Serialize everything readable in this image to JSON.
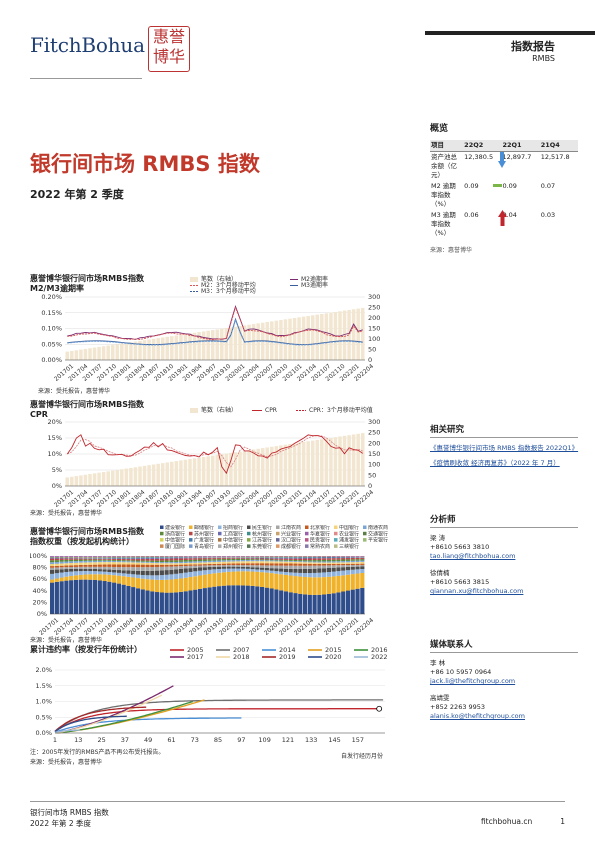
{
  "brand": {
    "logo_text": "FitchBohua",
    "seal_chars": [
      "惠",
      "誉",
      "博",
      "华"
    ]
  },
  "header": {
    "report_type": "指数报告",
    "category": "RMBS"
  },
  "title": {
    "main": "银行间市场 RMBS 指数",
    "sub": "2022 年第 2 季度"
  },
  "overview": {
    "title": "概览",
    "columns": [
      "项目",
      "22Q2",
      "22Q1",
      "21Q4"
    ],
    "rows": [
      {
        "label": "资产池总余额（亿元）",
        "v1": "12,380.5",
        "v2": "12,897.7",
        "v3": "12,517.8"
      },
      {
        "label": "M2 逾期率指数（%）",
        "v1": "0.09",
        "v2": "0.09",
        "v3": "0.07"
      },
      {
        "label": "M3 逾期率指数（%）",
        "v1": "0.06",
        "v2": "0.04",
        "v3": "0.03"
      }
    ],
    "footnote": "来源：惠誉博华",
    "indicator_colors": {
      "down": "#4a8fd6",
      "flat": "#7ab648",
      "up": "#c0262d"
    }
  },
  "related": {
    "title": "相关研究",
    "links": [
      "《惠誉博华银行间市场 RMBS 指数报告 2022Q1》",
      "《疫情刷收敛 经济再复苏》（2022 年 7 月）"
    ]
  },
  "analysts": {
    "title": "分析师",
    "people": [
      {
        "name": "梁 涛",
        "tel": "+8610 5663 3810",
        "email": "tao.liang@fitchbohua.com"
      },
      {
        "name": "徐倩楠",
        "tel": "+8610 5663 3815",
        "email": "qiannan.xu@fitchbohua.com"
      }
    ]
  },
  "media": {
    "title": "媒体联系人",
    "people": [
      {
        "name": "李 林",
        "tel": "+86 10 5957 0964",
        "email": "jack.li@thefitchgroup.com"
      },
      {
        "name": "高靖雯",
        "tel": "+852 2263 9953",
        "email": "alanis.ko@thefitchgroup.com"
      }
    ]
  },
  "chart1": {
    "title_line1": "惠誉博华银行间市场RMBS指数",
    "title_line2": "M2/M3逾期率",
    "legend": [
      "笔数（右轴）",
      "M2逾期率",
      "M2：3个月移动平均",
      "M3逾期率",
      "M3：3个月移动平均"
    ],
    "left_ticks": [
      "0.20%",
      "0.15%",
      "0.10%",
      "0.05%",
      "0.00%"
    ],
    "right_ticks": [
      "300",
      "250",
      "200",
      "150",
      "100",
      "50",
      "0"
    ],
    "x_labels": [
      "201701",
      "201704",
      "201707",
      "201710",
      "201801",
      "201804",
      "201807",
      "201810",
      "201901",
      "201904",
      "201907",
      "201910",
      "202001",
      "202004",
      "202007",
      "202010",
      "202101",
      "202104",
      "202107",
      "202110",
      "202201",
      "202204"
    ],
    "source": "来源：受托报告，惠誉博华"
  },
  "chart2": {
    "title_line1": "惠誉博华银行间市场RMBS指数",
    "title_line2": "CPR",
    "legend": [
      "笔数（右轴）",
      "CPR",
      "CPR：3个月移动平均值"
    ],
    "left_ticks": [
      "20%",
      "15%",
      "10%",
      "5%",
      "0%"
    ],
    "right_ticks": [
      "300",
      "250",
      "200",
      "150",
      "100",
      "50",
      "0"
    ],
    "x_labels": [
      "201701",
      "201704",
      "201707",
      "201710",
      "201801",
      "201804",
      "201807",
      "201810",
      "201901",
      "201904",
      "201907",
      "201910",
      "202001",
      "202004",
      "202007",
      "202010",
      "202101",
      "202104",
      "202107",
      "202110",
      "202201",
      "202204"
    ],
    "source": "来源：受托报告，惠誉博华"
  },
  "chart3": {
    "title_line1": "惠誉博华银行间市场RMBS指数",
    "title_line2": "指数权重（按发起机构统计）",
    "legend": [
      "建设银行",
      "邮储银行",
      "招商银行",
      "民生银行",
      "江南农商",
      "北京银行",
      "中国银行",
      "南通农商",
      "浙商银行",
      "苏州银行",
      "工商银行",
      "杭州银行",
      "兴业银行",
      "华夏银行",
      "农业银行",
      "交通银行",
      "中信银行",
      "广发银行",
      "中信银行",
      "江苏银行",
      "汉口银行",
      "民贡银行",
      "浦发银行",
      "平安银行",
      "厦门国际",
      "青岛银行",
      "郑州银行",
      "东莞银行",
      "成都银行",
      "常熟农商",
      "三峡银行"
    ],
    "left_ticks": [
      "100%",
      "80%",
      "60%",
      "40%",
      "20%",
      "0%"
    ],
    "x_labels": [
      "201701",
      "201704",
      "201707",
      "201710",
      "201801",
      "201804",
      "201807",
      "201810",
      "201901",
      "201904",
      "201907",
      "201910",
      "202001",
      "202004",
      "202007",
      "202010",
      "202101",
      "202104",
      "202107",
      "202110",
      "202201",
      "202204"
    ],
    "source": "来源：受托报告，惠誉博华"
  },
  "chart4": {
    "title": "累计违约率（按发行年份统计）",
    "legend": [
      "2005",
      "2007",
      "2014",
      "2015",
      "2016",
      "2017",
      "2018",
      "2019",
      "2020",
      "2022"
    ],
    "left_ticks": [
      "2.0%",
      "1.5%",
      "1.0%",
      "0.5%",
      "0.0%"
    ],
    "x_labels": [
      "1",
      "13",
      "25",
      "37",
      "49",
      "61",
      "73",
      "85",
      "97",
      "109",
      "121",
      "133",
      "145",
      "157"
    ],
    "x_axis_label": "自发行经历月份",
    "note": "注：2005年发行的RMBS产品不再公布受托报告。",
    "source": "来源：受托报告，惠誉博华"
  },
  "footer": {
    "left1": "银行间市场 RMBS 指数",
    "left2": "2022 年第 2 季度",
    "site": "fitchbohua.cn",
    "page": "1"
  }
}
